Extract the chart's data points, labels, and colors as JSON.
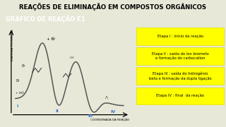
{
  "title": "REAÇÕES DE ELIMINAÇÃO EM COMPOSTOS ORGÂNICOS",
  "subtitle": "GRÁFICO DE REAÇÃO E1",
  "bg_color": "#e8e8d8",
  "title_bg": "#5bc8e8",
  "subtitle_bg": "#1ab0e0",
  "ylabel": "ENERGIA POTENCIAL",
  "xlabel": "COORDENADA DA REAÇÃO",
  "curve_color": "#555555",
  "stages": [
    {
      "label": "Etapa I : início da reação",
      "bg": "#ffff00"
    },
    {
      "label": "Etapa II : saída do íon brometo\ne formação do carbocation",
      "bg": "#ffff00"
    },
    {
      "label": "Etapa III : saída do hidrogênio\nbeta e formação da dupla ligação",
      "bg": "#ffff00"
    },
    {
      "label": "Etapa IV : final  da reação",
      "bg": "#ffff00"
    }
  ],
  "roman_color": "#3377cc",
  "br_color": "#cc1100"
}
